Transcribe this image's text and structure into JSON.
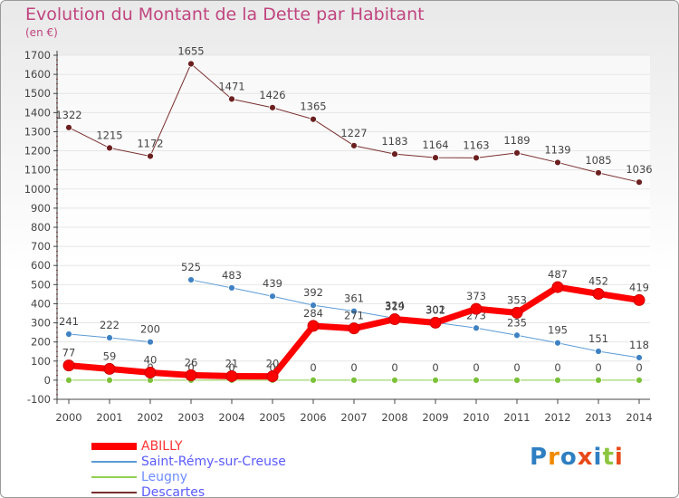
{
  "title": "Evolution du Montant de la Dette par Habitant",
  "subtitle": "(en €)",
  "colors": {
    "title": "#c0457f",
    "axis": "#444444",
    "grid": "#e6e6e6"
  },
  "legend": [
    {
      "name": "ABILLY",
      "color": "#ff0000",
      "thick": true
    },
    {
      "name": "Saint-Rémy-sur-Creuse",
      "color": "#5b9bd5",
      "thick": false
    },
    {
      "name": "Leugny",
      "color": "#92d050",
      "thick": false
    },
    {
      "name": "Descartes",
      "color": "#7b2f2f",
      "thick": false
    }
  ],
  "logo": {
    "letters": [
      "P",
      "r",
      "o",
      "x",
      "i",
      "t",
      "i"
    ],
    "colors": [
      "#2e7fc2",
      "#f08a00",
      "#2e7fc2",
      "#e84a1a",
      "#2e7fc2",
      "#8cc63f",
      "#e84a1a"
    ]
  },
  "chart_data": {
    "type": "line",
    "title": "Evolution du Montant de la Dette par Habitant",
    "subtitle": "(en €)",
    "xlabel": "",
    "ylabel": "",
    "x": [
      "2000",
      "2001",
      "2002",
      "2003",
      "2004",
      "2005",
      "2006",
      "2007",
      "2008",
      "2009",
      "2010",
      "2011",
      "2012",
      "2013",
      "2014"
    ],
    "ylim": [
      -100,
      1700
    ],
    "yticks": [
      -100,
      0,
      100,
      200,
      300,
      400,
      500,
      600,
      700,
      800,
      900,
      1000,
      1100,
      1200,
      1300,
      1400,
      1500,
      1600,
      1700
    ],
    "grid": true,
    "legend_position": "bottom-left",
    "series": [
      {
        "name": "Descartes",
        "color": "#7b2f2f",
        "width": 1,
        "marker": "#6b1f1f",
        "values": [
          1322,
          1215,
          1172,
          1655,
          1471,
          1426,
          1365,
          1227,
          1183,
          1164,
          1163,
          1189,
          1139,
          1085,
          1036
        ]
      },
      {
        "name": "Saint-Rémy-sur-Creuse",
        "color": "#5b9bd5",
        "width": 1,
        "marker": "#3f82c4",
        "values": [
          241,
          222,
          200,
          525,
          483,
          439,
          392,
          361,
          324,
          302,
          273,
          235,
          195,
          151,
          118
        ],
        "break_after": 2
      },
      {
        "name": "Leugny",
        "color": "#92d050",
        "width": 1,
        "marker": "#7cc23a",
        "values": [
          0,
          0,
          0,
          0,
          0,
          0,
          0,
          0,
          0,
          0,
          0,
          0,
          0,
          0,
          0
        ]
      },
      {
        "name": "ABILLY",
        "color": "#ff0000",
        "width": 7,
        "marker": "#ff0000",
        "values": [
          77,
          59,
          40,
          26,
          21,
          20,
          284,
          271,
          319,
          301,
          373,
          353,
          487,
          452,
          419
        ]
      }
    ]
  }
}
